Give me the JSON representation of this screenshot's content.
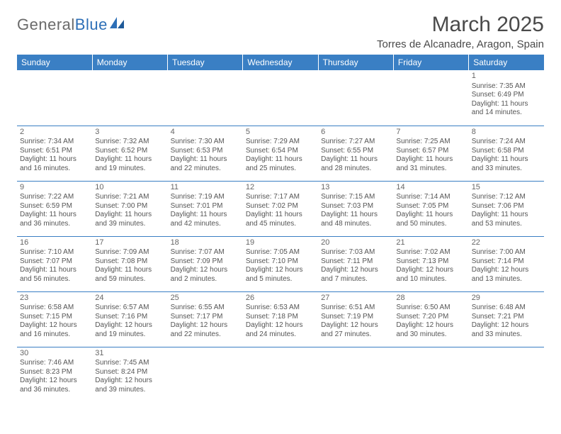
{
  "logo": {
    "word1": "General",
    "word2": "Blue"
  },
  "title": "March 2025",
  "location": "Torres de Alcanadre, Aragon, Spain",
  "colors": {
    "header_bg": "#3a7fc4",
    "header_text": "#ffffff",
    "cell_border": "#3a7fc4",
    "body_text": "#555555",
    "logo_gray": "#6a6a6a",
    "logo_blue": "#2d6fb7"
  },
  "day_headers": [
    "Sunday",
    "Monday",
    "Tuesday",
    "Wednesday",
    "Thursday",
    "Friday",
    "Saturday"
  ],
  "weeks": [
    [
      null,
      null,
      null,
      null,
      null,
      null,
      {
        "n": "1",
        "sr": "Sunrise: 7:35 AM",
        "ss": "Sunset: 6:49 PM",
        "d1": "Daylight: 11 hours",
        "d2": "and 14 minutes."
      }
    ],
    [
      {
        "n": "2",
        "sr": "Sunrise: 7:34 AM",
        "ss": "Sunset: 6:51 PM",
        "d1": "Daylight: 11 hours",
        "d2": "and 16 minutes."
      },
      {
        "n": "3",
        "sr": "Sunrise: 7:32 AM",
        "ss": "Sunset: 6:52 PM",
        "d1": "Daylight: 11 hours",
        "d2": "and 19 minutes."
      },
      {
        "n": "4",
        "sr": "Sunrise: 7:30 AM",
        "ss": "Sunset: 6:53 PM",
        "d1": "Daylight: 11 hours",
        "d2": "and 22 minutes."
      },
      {
        "n": "5",
        "sr": "Sunrise: 7:29 AM",
        "ss": "Sunset: 6:54 PM",
        "d1": "Daylight: 11 hours",
        "d2": "and 25 minutes."
      },
      {
        "n": "6",
        "sr": "Sunrise: 7:27 AM",
        "ss": "Sunset: 6:55 PM",
        "d1": "Daylight: 11 hours",
        "d2": "and 28 minutes."
      },
      {
        "n": "7",
        "sr": "Sunrise: 7:25 AM",
        "ss": "Sunset: 6:57 PM",
        "d1": "Daylight: 11 hours",
        "d2": "and 31 minutes."
      },
      {
        "n": "8",
        "sr": "Sunrise: 7:24 AM",
        "ss": "Sunset: 6:58 PM",
        "d1": "Daylight: 11 hours",
        "d2": "and 33 minutes."
      }
    ],
    [
      {
        "n": "9",
        "sr": "Sunrise: 7:22 AM",
        "ss": "Sunset: 6:59 PM",
        "d1": "Daylight: 11 hours",
        "d2": "and 36 minutes."
      },
      {
        "n": "10",
        "sr": "Sunrise: 7:21 AM",
        "ss": "Sunset: 7:00 PM",
        "d1": "Daylight: 11 hours",
        "d2": "and 39 minutes."
      },
      {
        "n": "11",
        "sr": "Sunrise: 7:19 AM",
        "ss": "Sunset: 7:01 PM",
        "d1": "Daylight: 11 hours",
        "d2": "and 42 minutes."
      },
      {
        "n": "12",
        "sr": "Sunrise: 7:17 AM",
        "ss": "Sunset: 7:02 PM",
        "d1": "Daylight: 11 hours",
        "d2": "and 45 minutes."
      },
      {
        "n": "13",
        "sr": "Sunrise: 7:15 AM",
        "ss": "Sunset: 7:03 PM",
        "d1": "Daylight: 11 hours",
        "d2": "and 48 minutes."
      },
      {
        "n": "14",
        "sr": "Sunrise: 7:14 AM",
        "ss": "Sunset: 7:05 PM",
        "d1": "Daylight: 11 hours",
        "d2": "and 50 minutes."
      },
      {
        "n": "15",
        "sr": "Sunrise: 7:12 AM",
        "ss": "Sunset: 7:06 PM",
        "d1": "Daylight: 11 hours",
        "d2": "and 53 minutes."
      }
    ],
    [
      {
        "n": "16",
        "sr": "Sunrise: 7:10 AM",
        "ss": "Sunset: 7:07 PM",
        "d1": "Daylight: 11 hours",
        "d2": "and 56 minutes."
      },
      {
        "n": "17",
        "sr": "Sunrise: 7:09 AM",
        "ss": "Sunset: 7:08 PM",
        "d1": "Daylight: 11 hours",
        "d2": "and 59 minutes."
      },
      {
        "n": "18",
        "sr": "Sunrise: 7:07 AM",
        "ss": "Sunset: 7:09 PM",
        "d1": "Daylight: 12 hours",
        "d2": "and 2 minutes."
      },
      {
        "n": "19",
        "sr": "Sunrise: 7:05 AM",
        "ss": "Sunset: 7:10 PM",
        "d1": "Daylight: 12 hours",
        "d2": "and 5 minutes."
      },
      {
        "n": "20",
        "sr": "Sunrise: 7:03 AM",
        "ss": "Sunset: 7:11 PM",
        "d1": "Daylight: 12 hours",
        "d2": "and 7 minutes."
      },
      {
        "n": "21",
        "sr": "Sunrise: 7:02 AM",
        "ss": "Sunset: 7:13 PM",
        "d1": "Daylight: 12 hours",
        "d2": "and 10 minutes."
      },
      {
        "n": "22",
        "sr": "Sunrise: 7:00 AM",
        "ss": "Sunset: 7:14 PM",
        "d1": "Daylight: 12 hours",
        "d2": "and 13 minutes."
      }
    ],
    [
      {
        "n": "23",
        "sr": "Sunrise: 6:58 AM",
        "ss": "Sunset: 7:15 PM",
        "d1": "Daylight: 12 hours",
        "d2": "and 16 minutes."
      },
      {
        "n": "24",
        "sr": "Sunrise: 6:57 AM",
        "ss": "Sunset: 7:16 PM",
        "d1": "Daylight: 12 hours",
        "d2": "and 19 minutes."
      },
      {
        "n": "25",
        "sr": "Sunrise: 6:55 AM",
        "ss": "Sunset: 7:17 PM",
        "d1": "Daylight: 12 hours",
        "d2": "and 22 minutes."
      },
      {
        "n": "26",
        "sr": "Sunrise: 6:53 AM",
        "ss": "Sunset: 7:18 PM",
        "d1": "Daylight: 12 hours",
        "d2": "and 24 minutes."
      },
      {
        "n": "27",
        "sr": "Sunrise: 6:51 AM",
        "ss": "Sunset: 7:19 PM",
        "d1": "Daylight: 12 hours",
        "d2": "and 27 minutes."
      },
      {
        "n": "28",
        "sr": "Sunrise: 6:50 AM",
        "ss": "Sunset: 7:20 PM",
        "d1": "Daylight: 12 hours",
        "d2": "and 30 minutes."
      },
      {
        "n": "29",
        "sr": "Sunrise: 6:48 AM",
        "ss": "Sunset: 7:21 PM",
        "d1": "Daylight: 12 hours",
        "d2": "and 33 minutes."
      }
    ],
    [
      {
        "n": "30",
        "sr": "Sunrise: 7:46 AM",
        "ss": "Sunset: 8:23 PM",
        "d1": "Daylight: 12 hours",
        "d2": "and 36 minutes."
      },
      {
        "n": "31",
        "sr": "Sunrise: 7:45 AM",
        "ss": "Sunset: 8:24 PM",
        "d1": "Daylight: 12 hours",
        "d2": "and 39 minutes."
      },
      null,
      null,
      null,
      null,
      null
    ]
  ]
}
